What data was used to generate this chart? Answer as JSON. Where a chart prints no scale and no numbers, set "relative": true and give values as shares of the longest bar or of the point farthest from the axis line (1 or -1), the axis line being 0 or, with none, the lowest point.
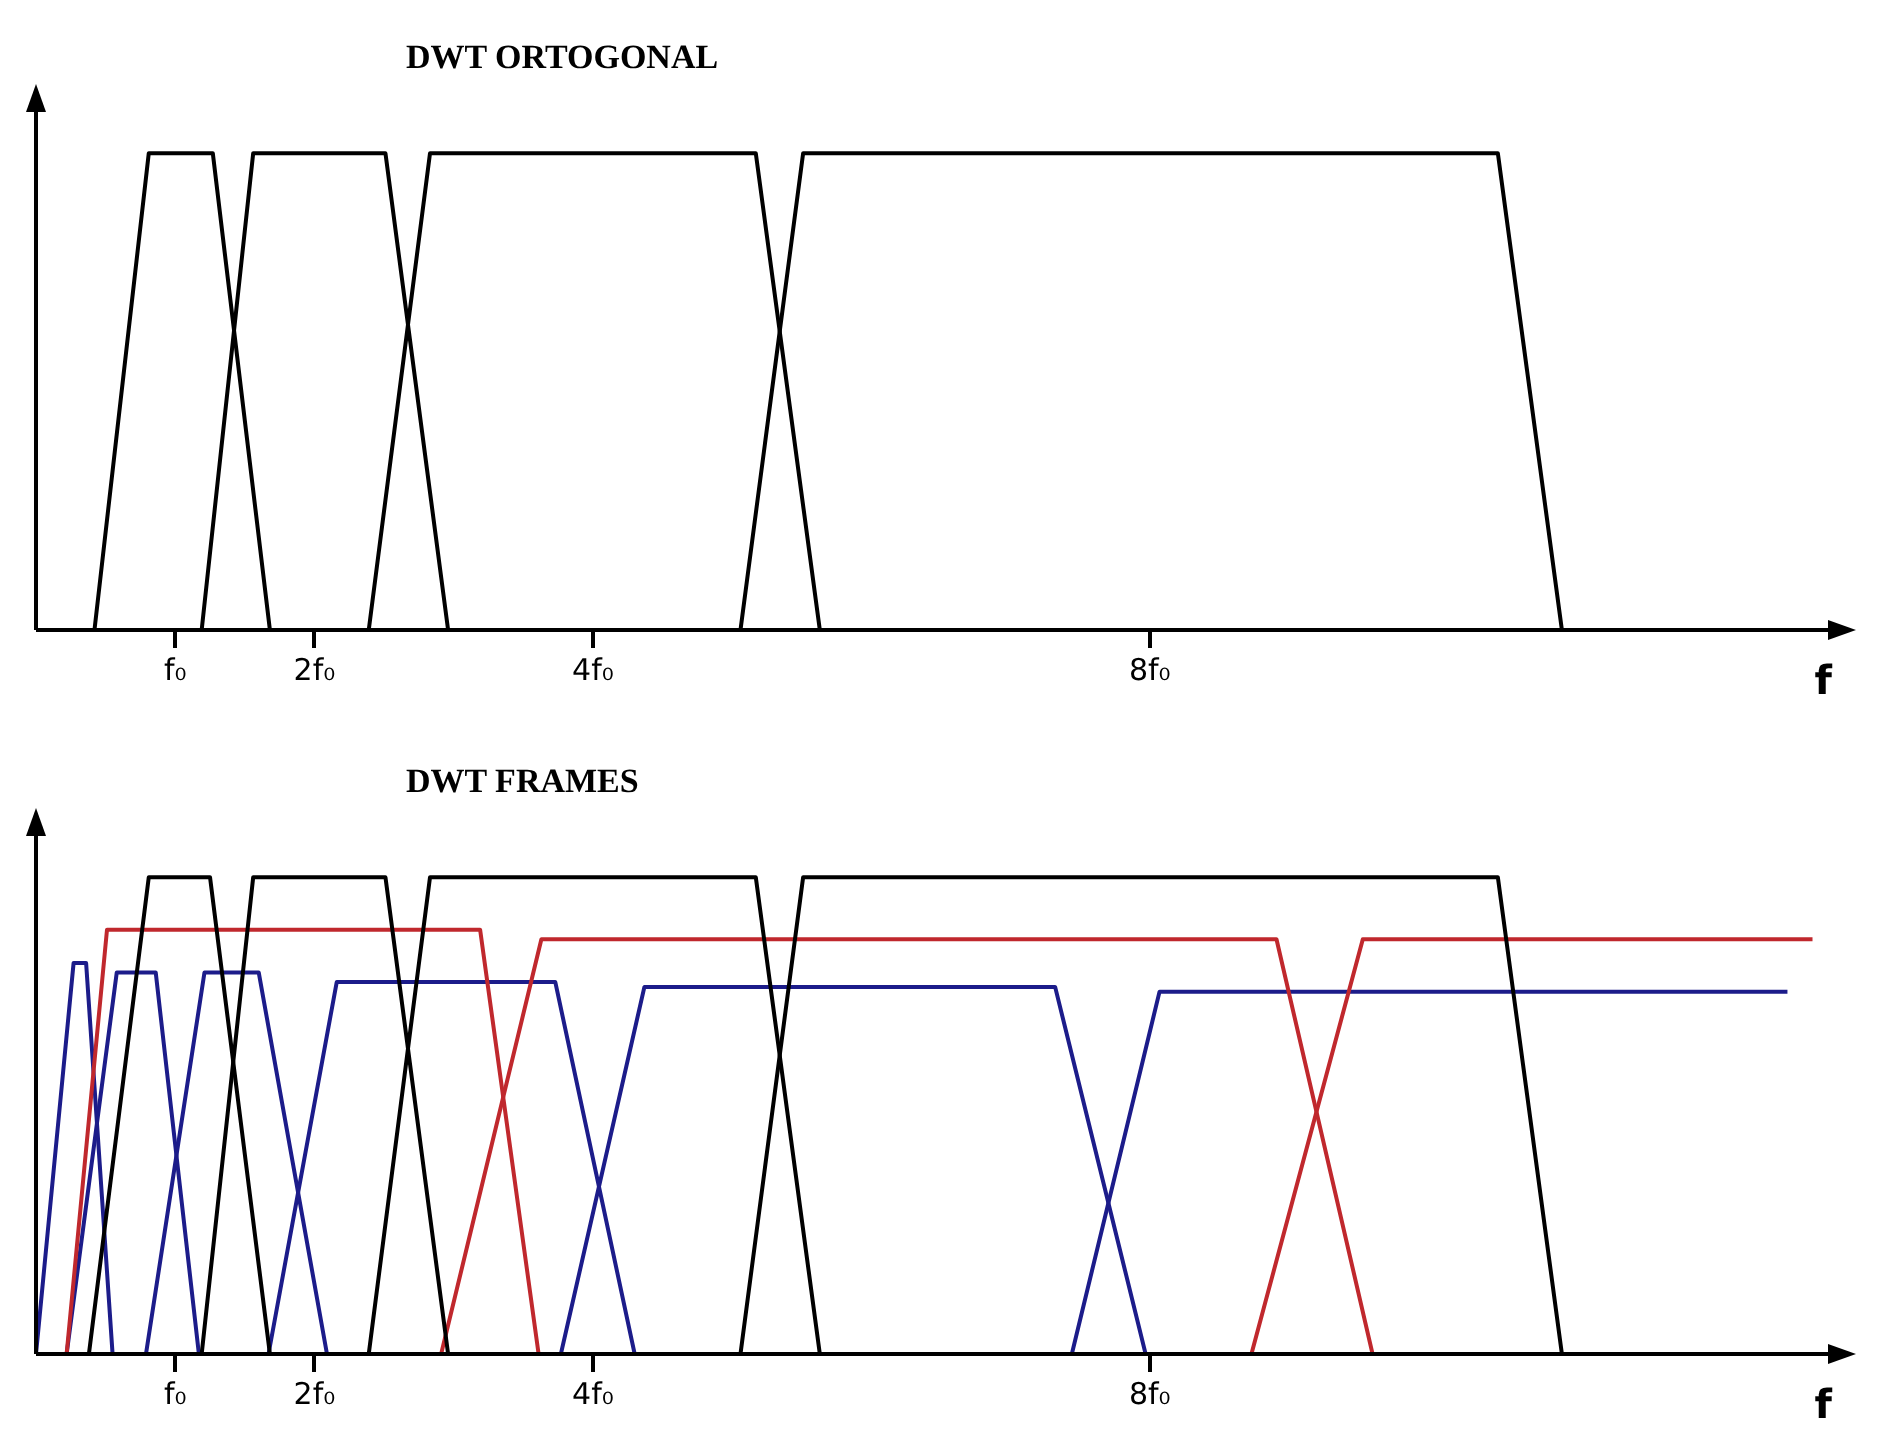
{
  "chart_data": [
    {
      "type": "line",
      "title": "DWT ORTOGONAL",
      "xlabel": "f",
      "relative": true,
      "grid": false,
      "legend": false,
      "marker": "none",
      "line_style": "solid",
      "xlim": [
        0,
        12.9
      ],
      "xticks": [
        {
          "value": 1,
          "label": "f₀"
        },
        {
          "value": 2,
          "label": "2f₀"
        },
        {
          "value": 4,
          "label": "4f₀"
        },
        {
          "value": 8,
          "label": "8f₀"
        }
      ],
      "series": [
        {
          "color": "#000000",
          "x": [
            0.42,
            0.81,
            1.27,
            1.68
          ],
          "values": [
            0,
            1,
            1,
            0
          ]
        },
        {
          "color": "#000000",
          "x": [
            1.19,
            1.56,
            2.51,
            2.96
          ],
          "values": [
            0,
            1,
            1,
            0
          ]
        },
        {
          "color": "#000000",
          "x": [
            2.39,
            2.83,
            5.17,
            5.63
          ],
          "values": [
            0,
            1,
            1,
            0
          ]
        },
        {
          "color": "#000000",
          "x": [
            5.06,
            5.51,
            10.5,
            10.96
          ],
          "values": [
            0,
            1,
            1,
            0
          ]
        }
      ]
    },
    {
      "type": "line",
      "title": "DWT FRAMES",
      "xlabel": "f",
      "relative": true,
      "grid": false,
      "legend": false,
      "marker": "none",
      "line_style": "solid",
      "xlim": [
        0,
        12.9
      ],
      "xticks": [
        {
          "value": 1,
          "label": "f₀"
        },
        {
          "value": 2,
          "label": "2f₀"
        },
        {
          "value": 4,
          "label": "4f₀"
        },
        {
          "value": 8,
          "label": "8f₀"
        }
      ],
      "series": [
        {
          "color": "#000000",
          "x": [
            0.38,
            0.81,
            1.25,
            1.68
          ],
          "values": [
            0,
            1,
            1,
            0
          ]
        },
        {
          "color": "#000000",
          "x": [
            1.19,
            1.56,
            2.51,
            2.96
          ],
          "values": [
            0,
            1,
            1,
            0
          ]
        },
        {
          "color": "#000000",
          "x": [
            2.39,
            2.83,
            5.17,
            5.63
          ],
          "values": [
            0,
            1,
            1,
            0
          ]
        },
        {
          "color": "#000000",
          "x": [
            5.06,
            5.51,
            10.5,
            10.96
          ],
          "values": [
            0,
            1,
            1,
            0
          ]
        },
        {
          "color": "#c0282d",
          "x": [
            0.22,
            0.51,
            3.19,
            3.61
          ],
          "values": [
            0,
            0.89,
            0.89,
            0
          ]
        },
        {
          "color": "#c0282d",
          "x": [
            2.91,
            3.63,
            8.91,
            9.6
          ],
          "values": [
            0,
            0.87,
            0.87,
            0
          ]
        },
        {
          "color": "#c0282d",
          "x": [
            8.73,
            9.53,
            12.76
          ],
          "values": [
            0,
            0.87,
            0.87
          ]
        },
        {
          "color": "#1c1c8a",
          "x": [
            0,
            0.27,
            0.36,
            0.55
          ],
          "values": [
            0,
            0.82,
            0.82,
            0
          ]
        },
        {
          "color": "#1c1c8a",
          "x": [
            0.22,
            0.58,
            0.86,
            1.17
          ],
          "values": [
            0,
            0.8,
            0.8,
            0
          ]
        },
        {
          "color": "#1c1c8a",
          "x": [
            0.79,
            1.21,
            1.6,
            2.09
          ],
          "values": [
            0,
            0.8,
            0.8,
            0
          ]
        },
        {
          "color": "#1c1c8a",
          "x": [
            1.67,
            2.16,
            3.73,
            4.3
          ],
          "values": [
            0,
            0.78,
            0.78,
            0
          ]
        },
        {
          "color": "#1c1c8a",
          "x": [
            3.77,
            4.37,
            7.32,
            7.97
          ],
          "values": [
            0,
            0.77,
            0.77,
            0
          ]
        },
        {
          "color": "#1c1c8a",
          "x": [
            7.44,
            8.07,
            12.58
          ],
          "values": [
            0,
            0.76,
            0.76
          ]
        }
      ]
    }
  ]
}
